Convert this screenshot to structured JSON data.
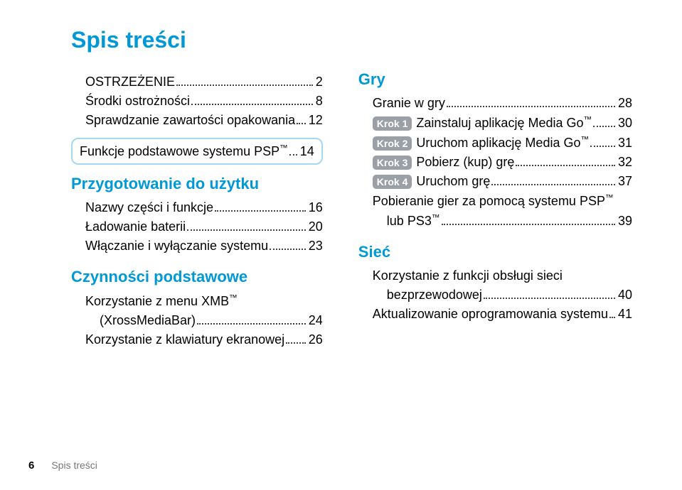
{
  "colors": {
    "accent": "#0099d6",
    "box_border": "#a7d8f2",
    "krok_bg": "#9aa0a6",
    "dots": "#444444",
    "footer_grey": "#777777"
  },
  "title": "Spis treści",
  "left": {
    "items_a": [
      {
        "label": "OSTRZEŻENIE",
        "page": "2",
        "indent": 1
      },
      {
        "label": "Środki ostrożności",
        "page": "8",
        "indent": 1
      },
      {
        "label": "Sprawdzanie zawartości opakowania",
        "page": "12",
        "indent": 1
      }
    ],
    "box_item": {
      "label": "Funkcje podstawowe systemu PSP™",
      "page": "14"
    },
    "section1": "Przygotowanie do użytku",
    "items_b": [
      {
        "label": "Nazwy części i funkcje",
        "page": "16",
        "indent": 1
      },
      {
        "label": "Ładowanie baterii",
        "page": "20",
        "indent": 1
      },
      {
        "label": "Włączanie i wyłączanie systemu",
        "page": "23",
        "indent": 1
      }
    ],
    "section2": "Czynności podstawowe",
    "items_c": [
      {
        "label": "Korzystanie z menu XMB™",
        "indent": 1,
        "nowrap": true
      },
      {
        "label": "(XrossMediaBar)",
        "page": "24",
        "indent": 2
      },
      {
        "label": "Korzystanie z klawiatury ekranowej",
        "page": "26",
        "indent": 1
      }
    ]
  },
  "right": {
    "section1": "Gry",
    "items_a": [
      {
        "label": "Granie w gry",
        "page": "28",
        "indent": 1
      },
      {
        "krok": "Krok 1",
        "label": "Zainstaluj aplikację Media Go™",
        "page": "30",
        "indent": 1
      },
      {
        "krok": "Krok 2",
        "label": "Uruchom aplikację Media Go™",
        "page": "31",
        "indent": 1
      },
      {
        "krok": "Krok 3",
        "label": "Pobierz (kup) grę",
        "page": "32",
        "indent": 1
      },
      {
        "krok": "Krok 4",
        "label": "Uruchom grę",
        "page": "37",
        "indent": 1
      },
      {
        "label": "Pobieranie gier za pomocą systemu PSP™",
        "indent": 1,
        "nowrap": true
      },
      {
        "label": "lub PS3™",
        "page": "39",
        "indent": 2
      }
    ],
    "section2": "Sieć",
    "items_b": [
      {
        "label": "Korzystanie z funkcji obsługi sieci",
        "indent": 1,
        "nowrap": true
      },
      {
        "label": "bezprzewodowej",
        "page": "40",
        "indent": 2
      },
      {
        "label": "Aktualizowanie oprogramowania systemu",
        "page": "41",
        "indent": 1
      }
    ]
  },
  "footer": {
    "page_num": "6",
    "section_label": "Spis treści"
  }
}
